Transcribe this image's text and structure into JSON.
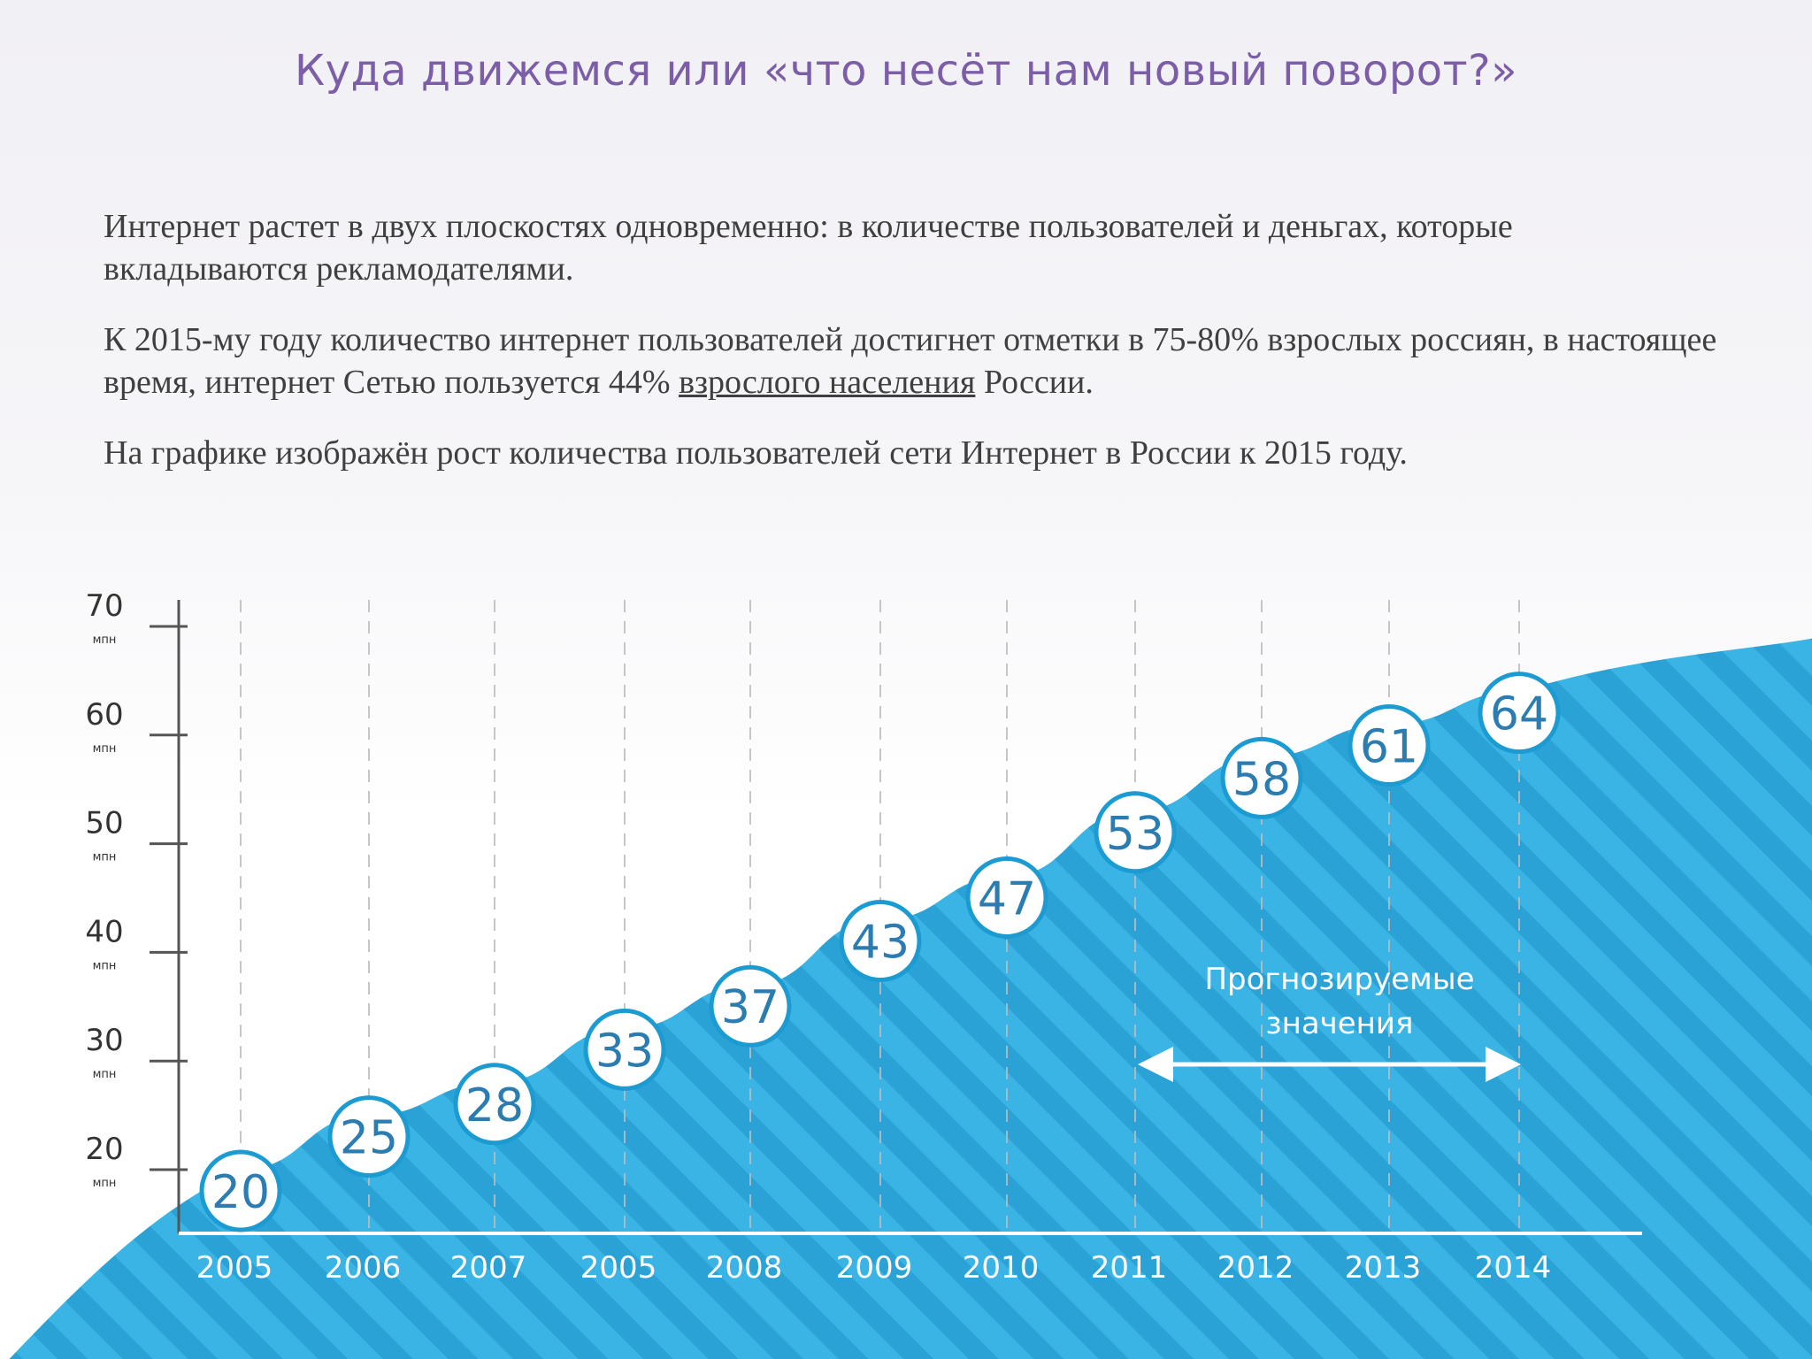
{
  "title": "Куда движемся или «что несёт нам новый поворот?»",
  "paragraphs": {
    "p1": "Интернет растет в двух плоскостях одновременно: в количестве пользователей и деньгах, которые вкладываются рекламодателями.",
    "p2_before": "К 2015-му году количество интернет пользователей достигнет отметки в 75-80% взрослых россиян, в настоящее время, интернет Сетью пользуется 44% ",
    "p2_link": "взрослого населения",
    "p2_after": " России.",
    "p3": "На графике изображён рост количества пользователей сети Интернет в России к 2015 году."
  },
  "colors": {
    "title": "#7b5ea7",
    "text": "#3f3f3f",
    "area": "#3ab4e4",
    "stripe": "#2aa2d6",
    "circle_stroke": "#1b9bd1",
    "label": "#2b7cb0",
    "axis": "#555555"
  },
  "chart_data": {
    "type": "area",
    "y_unit": "мпн",
    "yticks": [
      20,
      30,
      40,
      50,
      60,
      70
    ],
    "ylim": [
      20,
      70
    ],
    "x": [
      "2005",
      "2006",
      "2007",
      "2005",
      "2008",
      "2009",
      "2010",
      "2011",
      "2012",
      "2013",
      "2014"
    ],
    "values": [
      20,
      25,
      28,
      33,
      37,
      43,
      47,
      53,
      58,
      61,
      64
    ],
    "forecast": {
      "label_line1": "Прогнозируемые",
      "label_line2": "значения",
      "from": "2011",
      "to": "2014"
    },
    "grid": "vertical dashed"
  }
}
